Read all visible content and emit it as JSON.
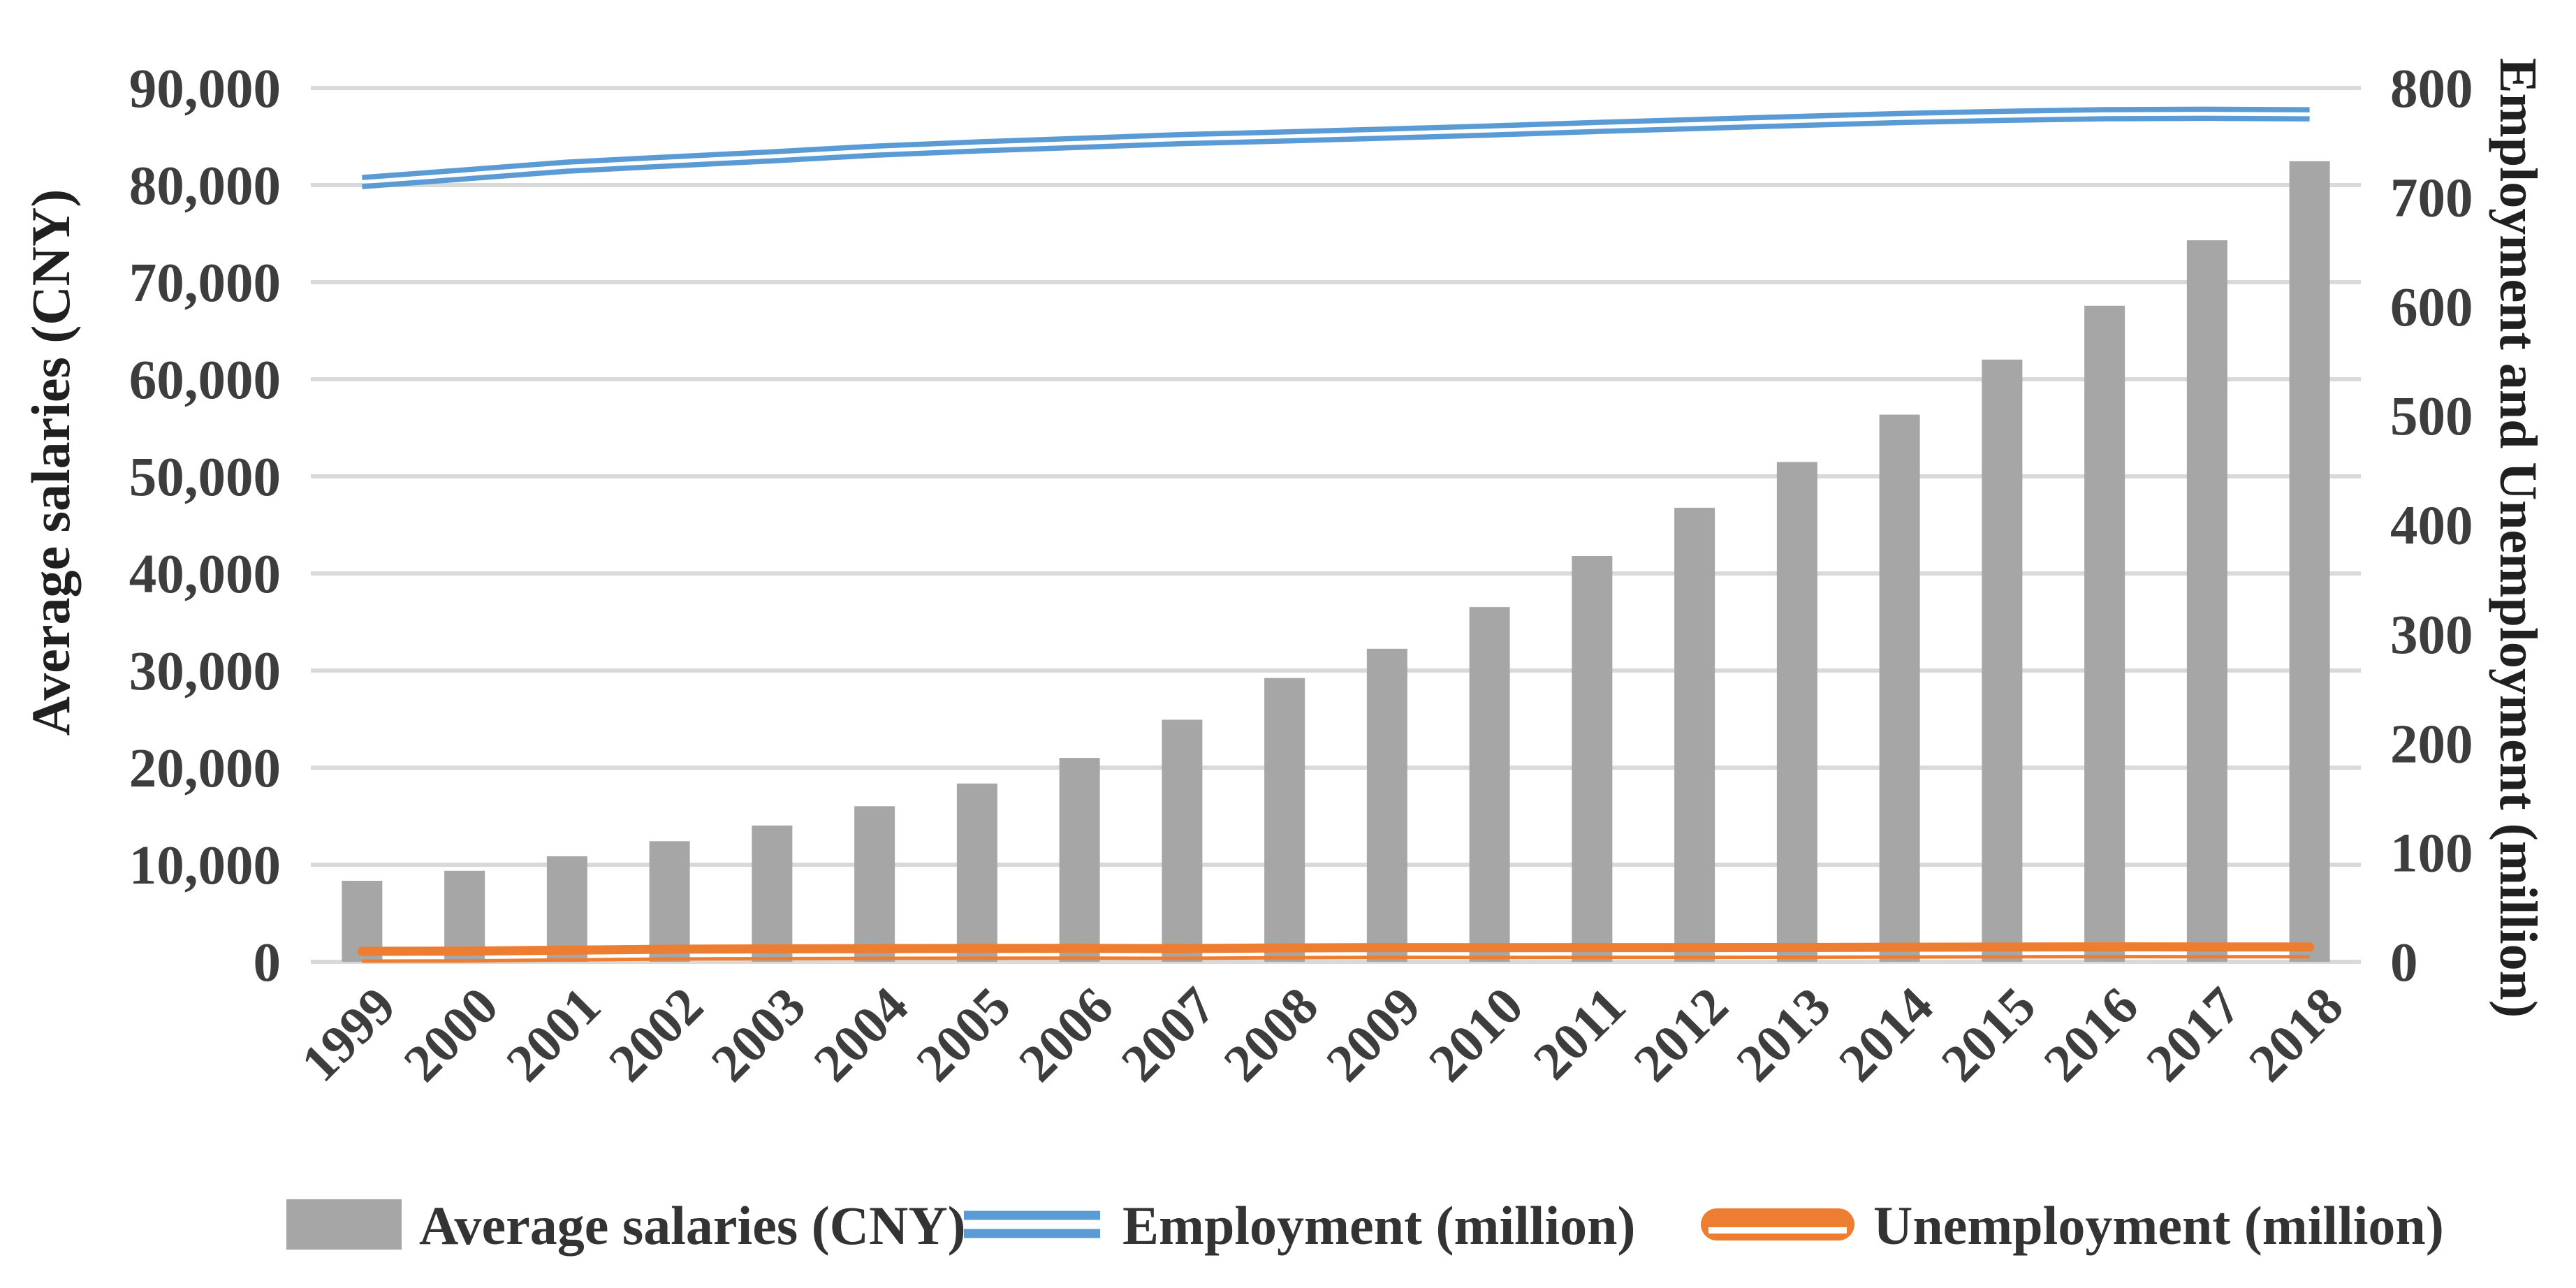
{
  "chart_data": {
    "type": "combo-bar-line",
    "title": "",
    "categories": [
      "1999",
      "2000",
      "2001",
      "2002",
      "2003",
      "2004",
      "2005",
      "2006",
      "2007",
      "2008",
      "2009",
      "2010",
      "2011",
      "2012",
      "2013",
      "2014",
      "2015",
      "2016",
      "2017",
      "2018"
    ],
    "series": [
      {
        "name": "Average salaries (CNY)",
        "type": "bar",
        "axis": "left",
        "color": "#a6a6a6",
        "values": [
          8346,
          9371,
          10870,
          12422,
          14040,
          16024,
          18364,
          21001,
          24932,
          29229,
          32244,
          36539,
          41799,
          46769,
          51483,
          56360,
          62029,
          67569,
          74318,
          82461
        ]
      },
      {
        "name": "Employment (million)",
        "type": "line",
        "axis": "right",
        "color": "#5b9bd5",
        "line_style": "double",
        "values": [
          713.9,
          720.9,
          728.0,
          732.8,
          737.4,
          742.6,
          746.5,
          749.8,
          753.2,
          755.6,
          758.3,
          761.1,
          764.2,
          767.0,
          769.8,
          772.5,
          774.5,
          776.0,
          776.4,
          775.9
        ]
      },
      {
        "name": "Unemployment (million)",
        "type": "line",
        "axis": "right",
        "color": "#ed7d31",
        "line_style": "thick-thin",
        "values": [
          5.75,
          5.95,
          6.81,
          7.7,
          8.0,
          8.27,
          8.39,
          8.47,
          8.3,
          8.86,
          9.21,
          9.08,
          9.22,
          9.17,
          9.26,
          9.52,
          9.66,
          9.82,
          9.72,
          9.74
        ]
      }
    ],
    "left_axis": {
      "title": "Average salaries (CNY)",
      "min": 0,
      "max": 90000,
      "step": 10000,
      "tick_labels": [
        "0",
        "10,000",
        "20,000",
        "30,000",
        "40,000",
        "50,000",
        "60,000",
        "70,000",
        "80,000",
        "90,000"
      ]
    },
    "right_axis": {
      "title": "Employment and Unemployment (million)",
      "min": 0,
      "max": 800,
      "step": 100,
      "tick_labels": [
        "0",
        "100",
        "200",
        "300",
        "400",
        "500",
        "600",
        "700",
        "800"
      ]
    },
    "x_axis": {
      "label_rotation_deg": -45
    },
    "legend": {
      "position": "bottom",
      "entries": [
        "Average salaries (CNY)",
        "Employment (million)",
        "Unemployment (million)"
      ]
    },
    "grid": true,
    "colors": {
      "bar": "#a6a6a6",
      "employment_line": "#5b9bd5",
      "unemployment_line": "#ed7d31",
      "gridline": "#d9d9d9",
      "tick_text": "#3d3d3d",
      "title_text": "#202020",
      "legend_text": "#333333",
      "background": "#ffffff"
    }
  }
}
